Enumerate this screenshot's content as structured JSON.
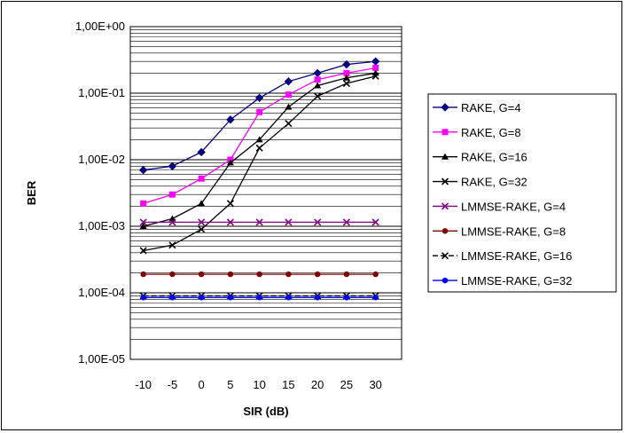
{
  "chart_data": {
    "type": "line",
    "xlabel": "SIR (dB)",
    "ylabel": "BER",
    "yscale": "log",
    "ylim": [
      1e-05,
      1
    ],
    "y_tick_labels": [
      "1,00E-05",
      "1,00E-04",
      "1,00E-03",
      "1,00E-02",
      "1,00E-01",
      "1,00E+00"
    ],
    "categories": [
      "-10",
      "-5",
      "0",
      "5",
      "10",
      "15",
      "20",
      "25",
      "30"
    ],
    "grid": "on (major and minor horizontal)",
    "legend_position": "right",
    "series": [
      {
        "name": "RAKE, G=4",
        "color": "#000080",
        "marker": "diamond",
        "line": "solid",
        "values": [
          0.007,
          0.008,
          0.013,
          0.04,
          0.085,
          0.15,
          0.2,
          0.27,
          0.3
        ]
      },
      {
        "name": "RAKE, G=8",
        "color": "#ff00ff",
        "marker": "square",
        "line": "solid",
        "values": [
          0.0022,
          0.003,
          0.0052,
          0.01,
          0.052,
          0.095,
          0.16,
          0.2,
          0.24
        ]
      },
      {
        "name": "RAKE, G=16",
        "color": "#000000",
        "marker": "triangle",
        "line": "solid",
        "values": [
          0.001,
          0.0013,
          0.0022,
          0.009,
          0.02,
          0.062,
          0.13,
          0.17,
          0.2
        ]
      },
      {
        "name": "RAKE, G=32",
        "color": "#000000",
        "marker": "x",
        "line": "solid",
        "values": [
          0.00043,
          0.00052,
          0.0009,
          0.0022,
          0.015,
          0.035,
          0.09,
          0.14,
          0.18
        ]
      },
      {
        "name": "LMMSE-RAKE, G=4",
        "color": "#800080",
        "marker": "x",
        "line": "solid",
        "values": [
          0.00115,
          0.00115,
          0.00115,
          0.00115,
          0.00115,
          0.00115,
          0.00115,
          0.00115,
          0.00115
        ]
      },
      {
        "name": "LMMSE-RAKE, G=8",
        "color": "#800000",
        "marker": "circle",
        "line": "solid",
        "values": [
          0.00019,
          0.00019,
          0.00019,
          0.00019,
          0.00019,
          0.00019,
          0.00019,
          0.00019,
          0.00019
        ]
      },
      {
        "name": "LMMSE-RAKE, G=16",
        "color": "#000000",
        "marker": "x",
        "line": "dashed",
        "values": [
          9e-05,
          9e-05,
          9e-05,
          9e-05,
          9e-05,
          9e-05,
          9e-05,
          9e-05,
          9e-05
        ]
      },
      {
        "name": "LMMSE-RAKE, G=32",
        "color": "#0000ff",
        "marker": "circle",
        "line": "solid",
        "values": [
          8.5e-05,
          8.5e-05,
          8.5e-05,
          8.5e-05,
          8.5e-05,
          8.5e-05,
          8.5e-05,
          8.5e-05,
          8.5e-05
        ]
      }
    ]
  }
}
